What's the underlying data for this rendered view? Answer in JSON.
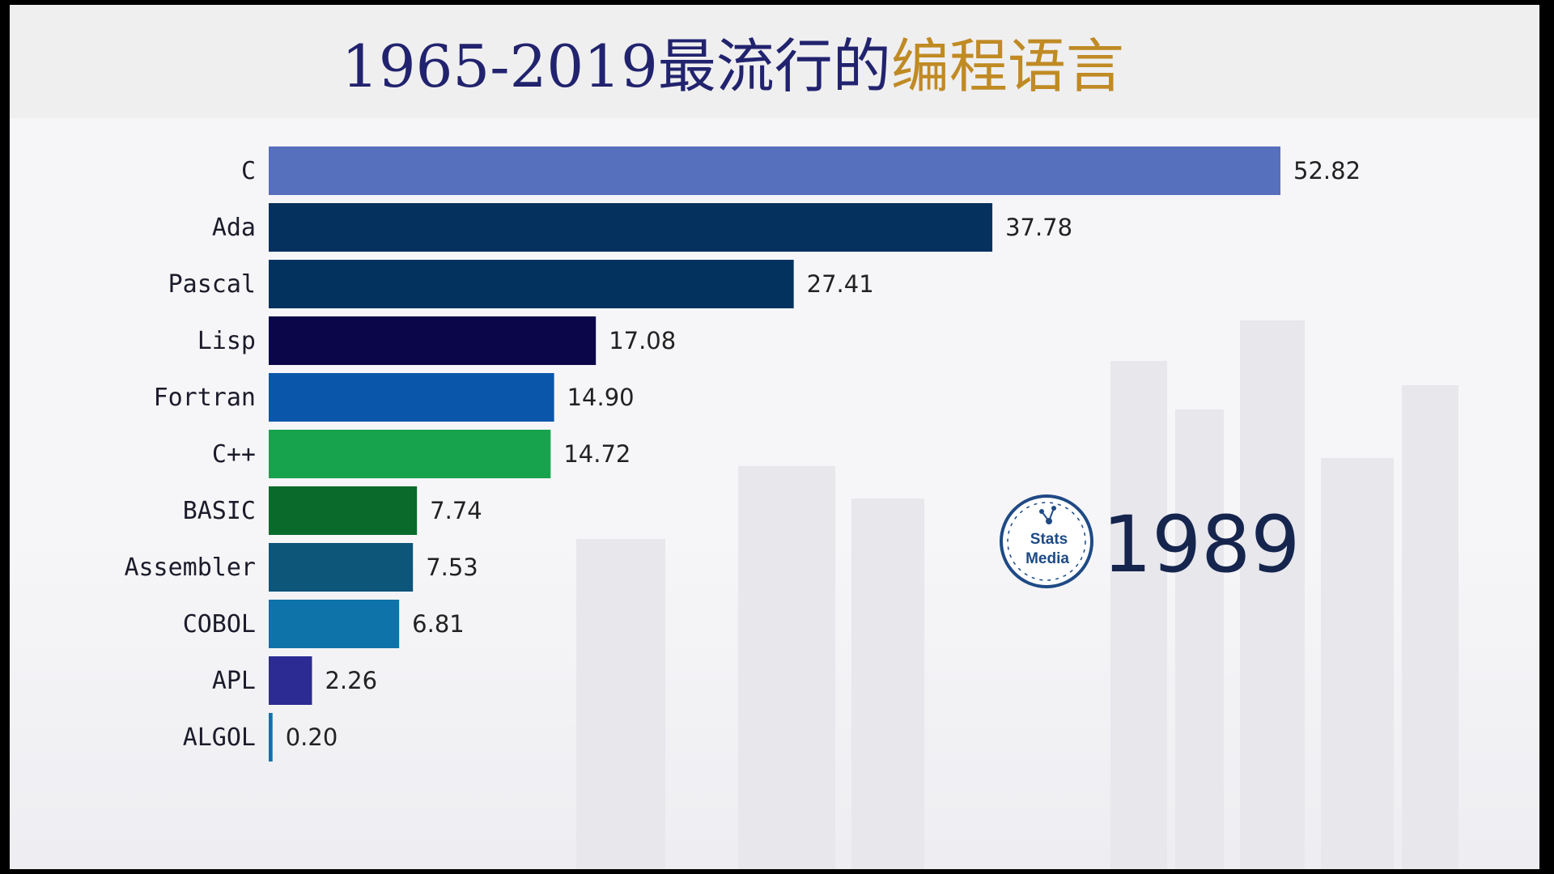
{
  "title": {
    "part1": "1965-2019最流行的",
    "part2": "编程语言"
  },
  "year": "1989",
  "logo": {
    "line1": "Stats",
    "line2": "Media"
  },
  "chart_data": {
    "type": "bar",
    "orientation": "horizontal",
    "categories": [
      "C",
      "Ada",
      "Pascal",
      "Lisp",
      "Fortran",
      "C++",
      "BASIC",
      "Assembler",
      "COBOL",
      "APL",
      "ALGOL"
    ],
    "values": [
      52.82,
      37.78,
      27.41,
      17.08,
      14.9,
      14.72,
      7.74,
      7.53,
      6.81,
      2.26,
      0.2
    ],
    "value_labels": [
      "52.82",
      "37.78",
      "27.41",
      "17.08",
      "14.90",
      "14.72",
      "7.74",
      "7.53",
      "6.81",
      "2.26",
      "0.20"
    ],
    "colors": [
      "#5670bd",
      "#05315f",
      "#04325f",
      "#0b0649",
      "#0a56aa",
      "#17a34e",
      "#096a2c",
      "#0d5579",
      "#0e73a8",
      "#2c2b93",
      "#0e73a8"
    ],
    "xlim": [
      0,
      52.82
    ],
    "grid": false,
    "legend": "none"
  }
}
